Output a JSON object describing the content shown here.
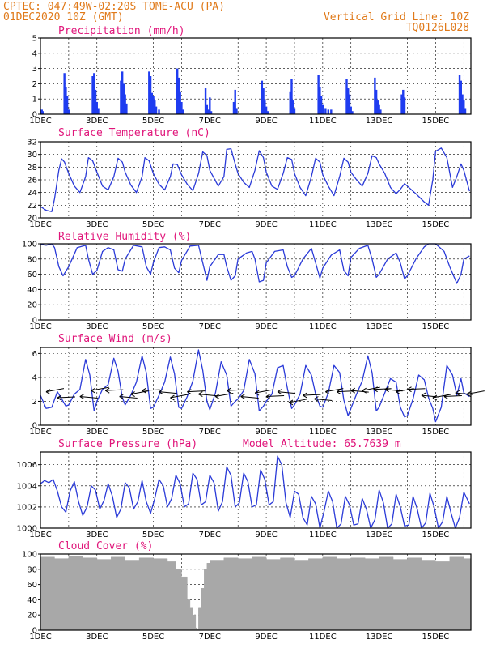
{
  "header": {
    "line1_left": "CPTEC:   047:49W-02:20S   TOME-ACU (PA)",
    "line2_left": "01DEC2020 10Z (GMT)",
    "line2_right": "Vertical Grid Line: 10Z",
    "line3_right": "TQ0126L028",
    "model_altitude": "Model Altitude: 65.7639 m"
  },
  "colors": {
    "header": "#e07a1a",
    "title": "#e0157a",
    "series": "#2a3ad8",
    "bars": "#1f3cf0",
    "cloud": "#a8a8a8"
  },
  "x_axis": {
    "tick_labels": [
      "1DEC",
      "3DEC",
      "5DEC",
      "7DEC",
      "9DEC",
      "11DEC",
      "13DEC",
      "15DEC"
    ],
    "tick_days": [
      1,
      3,
      5,
      7,
      9,
      11,
      13,
      15
    ],
    "year_label": "2020",
    "range": [
      1.0,
      16.25
    ]
  },
  "chart_data": [
    {
      "id": "precip",
      "type": "bar",
      "title": "Precipitation (mm/h)",
      "ylim": [
        0,
        5
      ],
      "yticks": [
        0,
        1,
        2,
        3,
        4,
        5
      ],
      "x": [
        1.05,
        1.1,
        1.85,
        1.9,
        1.95,
        2.0,
        2.85,
        2.9,
        2.95,
        3.0,
        3.05,
        3.85,
        3.9,
        3.95,
        4.0,
        4.05,
        4.85,
        4.9,
        4.95,
        5.0,
        5.05,
        5.1,
        5.2,
        5.85,
        5.9,
        5.95,
        6.0,
        6.05,
        6.85,
        6.9,
        6.95,
        7.0,
        7.05,
        7.85,
        7.9,
        7.95,
        8.85,
        8.9,
        8.95,
        9.0,
        9.05,
        9.85,
        9.9,
        9.95,
        10.0,
        10.85,
        10.9,
        10.95,
        11.0,
        11.1,
        11.2,
        11.3,
        11.85,
        11.9,
        11.95,
        12.0,
        12.05,
        12.85,
        12.9,
        12.95,
        13.0,
        13.05,
        13.8,
        13.85,
        13.9,
        15.85,
        15.9,
        15.95,
        16.0,
        16.05
      ],
      "values": [
        0.3,
        0.2,
        2.7,
        1.8,
        1.2,
        0.3,
        2.5,
        2.7,
        1.6,
        0.8,
        0.4,
        2.2,
        2.8,
        2.0,
        1.3,
        0.7,
        2.8,
        2.5,
        1.4,
        1.2,
        0.9,
        0.5,
        0.3,
        3.0,
        2.4,
        1.5,
        0.8,
        0.3,
        1.7,
        0.6,
        0.3,
        1.1,
        0.2,
        0.8,
        1.6,
        0.4,
        2.2,
        1.7,
        0.9,
        0.5,
        0.2,
        1.5,
        2.3,
        0.9,
        0.4,
        2.6,
        1.8,
        1.2,
        0.6,
        0.4,
        0.3,
        0.3,
        2.3,
        1.7,
        1.3,
        0.5,
        0.2,
        2.4,
        1.6,
        0.9,
        0.6,
        0.3,
        1.3,
        1.6,
        1.1,
        2.6,
        2.2,
        1.3,
        0.9,
        0.4
      ]
    },
    {
      "id": "temp",
      "type": "line",
      "title": "Surface Temperature (nC)",
      "ylim": [
        20,
        32
      ],
      "yticks": [
        20,
        22,
        24,
        26,
        28,
        30,
        32
      ],
      "x": [
        1.0,
        1.2,
        1.4,
        1.5,
        1.65,
        1.75,
        1.85,
        2.0,
        2.2,
        2.4,
        2.6,
        2.7,
        2.85,
        3.0,
        3.2,
        3.4,
        3.6,
        3.75,
        3.9,
        4.0,
        4.2,
        4.4,
        4.6,
        4.7,
        4.85,
        5.0,
        5.2,
        5.4,
        5.6,
        5.7,
        5.85,
        6.0,
        6.2,
        6.4,
        6.6,
        6.75,
        6.9,
        7.0,
        7.3,
        7.5,
        7.6,
        7.75,
        7.9,
        8.0,
        8.2,
        8.4,
        8.6,
        8.75,
        8.9,
        9.0,
        9.2,
        9.4,
        9.6,
        9.75,
        9.9,
        10.0,
        10.2,
        10.4,
        10.6,
        10.75,
        10.9,
        11.0,
        11.2,
        11.4,
        11.6,
        11.75,
        11.9,
        12.0,
        12.2,
        12.4,
        12.6,
        12.75,
        12.9,
        13.0,
        13.2,
        13.4,
        13.6,
        13.75,
        13.9,
        14.0,
        14.3,
        14.6,
        14.75,
        14.9,
        15.0,
        15.2,
        15.4,
        15.6,
        15.75,
        15.9,
        16.0,
        16.2
      ],
      "values": [
        21.8,
        21.2,
        21.0,
        23.0,
        27.5,
        29.3,
        28.8,
        27.0,
        25.0,
        24.0,
        26.5,
        29.5,
        29.0,
        27.2,
        25.0,
        24.4,
        26.5,
        29.4,
        28.8,
        27.2,
        25.2,
        24.0,
        26.5,
        29.5,
        29.0,
        27.0,
        25.3,
        24.4,
        26.5,
        28.5,
        28.4,
        26.8,
        25.3,
        24.3,
        27.0,
        30.4,
        29.8,
        27.5,
        25.0,
        26.5,
        30.8,
        30.9,
        28.5,
        27.0,
        25.6,
        24.8,
        27.5,
        30.6,
        29.5,
        27.2,
        25.0,
        24.5,
        27.0,
        29.5,
        29.2,
        27.0,
        24.8,
        23.5,
        26.5,
        29.4,
        28.8,
        26.8,
        25.0,
        23.5,
        26.5,
        29.4,
        28.8,
        27.2,
        26.0,
        25.0,
        27.0,
        29.8,
        29.5,
        28.5,
        27.0,
        24.8,
        23.8,
        24.5,
        25.4,
        25.0,
        23.8,
        22.5,
        22.0,
        26.0,
        30.5,
        31.0,
        29.5,
        24.8,
        26.5,
        28.5,
        27.5,
        24.2
      ]
    },
    {
      "id": "humidity",
      "type": "line",
      "title": "Relative Humidity (%)",
      "ylim": [
        0,
        100
      ],
      "yticks": [
        0,
        20,
        40,
        60,
        80,
        100
      ],
      "x": [
        1.0,
        1.2,
        1.4,
        1.5,
        1.65,
        1.8,
        2.0,
        2.3,
        2.6,
        2.7,
        2.85,
        3.0,
        3.2,
        3.4,
        3.6,
        3.75,
        3.9,
        4.0,
        4.3,
        4.6,
        4.75,
        4.9,
        5.0,
        5.2,
        5.4,
        5.6,
        5.75,
        5.9,
        6.0,
        6.3,
        6.6,
        6.75,
        6.9,
        7.0,
        7.3,
        7.5,
        7.6,
        7.75,
        7.9,
        8.0,
        8.3,
        8.5,
        8.6,
        8.75,
        8.9,
        9.0,
        9.3,
        9.6,
        9.75,
        9.9,
        10.0,
        10.3,
        10.6,
        10.75,
        10.9,
        11.0,
        11.3,
        11.6,
        11.75,
        11.9,
        12.0,
        12.3,
        12.6,
        12.75,
        12.9,
        13.0,
        13.3,
        13.6,
        13.75,
        13.9,
        14.0,
        14.3,
        14.6,
        14.75,
        14.9,
        15.0,
        15.3,
        15.5,
        15.75,
        15.9,
        16.0,
        16.2
      ],
      "values": [
        100,
        98,
        100,
        95,
        70,
        58,
        70,
        95,
        98,
        80,
        60,
        65,
        90,
        95,
        92,
        66,
        64,
        80,
        98,
        96,
        70,
        60,
        75,
        95,
        96,
        92,
        68,
        62,
        78,
        97,
        98,
        75,
        52,
        70,
        86,
        86,
        70,
        52,
        58,
        80,
        88,
        90,
        80,
        50,
        52,
        75,
        90,
        92,
        70,
        56,
        58,
        80,
        94,
        75,
        55,
        68,
        85,
        92,
        65,
        58,
        82,
        94,
        98,
        80,
        56,
        60,
        80,
        88,
        75,
        54,
        58,
        80,
        96,
        100,
        100,
        100,
        90,
        70,
        48,
        60,
        80,
        84
      ]
    },
    {
      "id": "wind",
      "type": "line",
      "title": "Surface Wind (m/s)",
      "ylim": [
        0,
        6.5
      ],
      "yticks": [
        0,
        2,
        4,
        6
      ],
      "x": [
        1.0,
        1.2,
        1.4,
        1.6,
        1.75,
        1.9,
        2.0,
        2.2,
        2.4,
        2.6,
        2.75,
        2.9,
        3.0,
        3.2,
        3.4,
        3.6,
        3.75,
        3.9,
        4.0,
        4.2,
        4.4,
        4.6,
        4.75,
        4.9,
        5.0,
        5.2,
        5.4,
        5.6,
        5.75,
        5.9,
        6.0,
        6.2,
        6.4,
        6.6,
        6.75,
        6.9,
        7.0,
        7.2,
        7.4,
        7.6,
        7.75,
        7.9,
        8.0,
        8.2,
        8.4,
        8.6,
        8.75,
        8.9,
        9.0,
        9.2,
        9.4,
        9.6,
        9.75,
        9.9,
        10.0,
        10.2,
        10.4,
        10.6,
        10.75,
        10.9,
        11.0,
        11.2,
        11.4,
        11.6,
        11.75,
        11.9,
        12.0,
        12.2,
        12.4,
        12.6,
        12.75,
        12.9,
        13.0,
        13.2,
        13.4,
        13.6,
        13.75,
        13.9,
        14.0,
        14.2,
        14.4,
        14.6,
        14.75,
        14.9,
        15.0,
        15.2,
        15.4,
        15.6,
        15.75,
        15.9,
        16.0,
        16.2
      ],
      "values": [
        2.5,
        1.4,
        1.5,
        2.8,
        2.2,
        1.6,
        1.7,
        2.6,
        3.0,
        5.5,
        4.2,
        1.2,
        2.0,
        3.0,
        3.4,
        5.6,
        4.5,
        2.3,
        1.7,
        2.5,
        3.6,
        5.8,
        4.4,
        1.4,
        1.5,
        2.5,
        3.6,
        5.7,
        4.3,
        1.5,
        1.4,
        2.4,
        3.7,
        6.3,
        4.6,
        2.0,
        1.3,
        2.7,
        5.3,
        4.2,
        1.6,
        2.0,
        2.2,
        2.9,
        5.5,
        4.3,
        1.2,
        1.6,
        2.0,
        2.6,
        4.8,
        5.0,
        3.1,
        1.4,
        1.7,
        2.6,
        5.0,
        4.2,
        2.6,
        1.6,
        1.5,
        2.7,
        5.0,
        4.4,
        2.1,
        0.8,
        1.4,
        2.6,
        3.7,
        5.8,
        4.4,
        1.2,
        1.5,
        2.7,
        3.9,
        3.6,
        1.5,
        0.7,
        0.8,
        2.2,
        4.2,
        3.8,
        2.3,
        1.4,
        0.3,
        1.5,
        5.0,
        4.2,
        2.5,
        3.9,
        2.7,
        2.4
      ]
    },
    {
      "id": "pressure",
      "type": "line",
      "title": "Surface Pressure (hPa)",
      "ylim": [
        1000,
        1007.2
      ],
      "yticks": [
        1002,
        1004,
        1006
      ],
      "ytick_labels": [
        "1002",
        "1004",
        "1006"
      ],
      "ybottom_label": "1000",
      "x": [
        1.0,
        1.15,
        1.3,
        1.45,
        1.6,
        1.75,
        1.9,
        2.05,
        2.2,
        2.35,
        2.5,
        2.65,
        2.8,
        2.95,
        3.1,
        3.25,
        3.4,
        3.55,
        3.7,
        3.85,
        4.0,
        4.15,
        4.3,
        4.45,
        4.6,
        4.75,
        4.9,
        5.05,
        5.2,
        5.35,
        5.5,
        5.65,
        5.8,
        5.95,
        6.1,
        6.25,
        6.4,
        6.55,
        6.7,
        6.85,
        7.0,
        7.15,
        7.3,
        7.45,
        7.6,
        7.75,
        7.9,
        8.05,
        8.2,
        8.35,
        8.5,
        8.65,
        8.8,
        8.95,
        9.1,
        9.25,
        9.4,
        9.55,
        9.7,
        9.85,
        10.0,
        10.15,
        10.3,
        10.45,
        10.6,
        10.75,
        10.9,
        11.05,
        11.2,
        11.35,
        11.5,
        11.65,
        11.8,
        11.95,
        12.1,
        12.25,
        12.4,
        12.55,
        12.7,
        12.85,
        13.0,
        13.15,
        13.3,
        13.45,
        13.6,
        13.75,
        13.9,
        14.05,
        14.2,
        14.35,
        14.5,
        14.65,
        14.8,
        14.95,
        15.1,
        15.25,
        15.4,
        15.55,
        15.7,
        15.85,
        16.0,
        16.2
      ],
      "values": [
        1004.2,
        1004.5,
        1004.3,
        1004.6,
        1003.5,
        1002.0,
        1001.5,
        1003.5,
        1004.4,
        1002.5,
        1001.2,
        1002.0,
        1004.0,
        1003.6,
        1001.8,
        1002.6,
        1004.2,
        1003.0,
        1001.0,
        1001.8,
        1004.3,
        1003.8,
        1001.8,
        1002.5,
        1004.5,
        1002.5,
        1001.4,
        1002.8,
        1004.6,
        1004.0,
        1002.0,
        1002.8,
        1005.0,
        1004.2,
        1002.0,
        1002.3,
        1005.2,
        1004.6,
        1002.2,
        1002.5,
        1005.0,
        1004.3,
        1001.6,
        1002.5,
        1005.8,
        1005.0,
        1002.0,
        1002.4,
        1005.2,
        1004.4,
        1002.0,
        1002.2,
        1005.5,
        1004.6,
        1002.2,
        1002.5,
        1006.8,
        1006.0,
        1002.4,
        1001.0,
        1003.5,
        1003.2,
        1001.0,
        1000.3,
        1003.0,
        1002.3,
        1000.0,
        1001.6,
        1003.5,
        1002.5,
        1000.0,
        1000.4,
        1003.0,
        1002.2,
        1000.3,
        1000.4,
        1002.8,
        1001.8,
        1000.0,
        1000.8,
        1003.6,
        1002.4,
        1000.0,
        1000.4,
        1003.2,
        1002.0,
        1000.2,
        1000.3,
        1003.0,
        1001.8,
        1000.0,
        1000.5,
        1003.3,
        1002.0,
        1000.0,
        1000.6,
        1003.0,
        1001.4,
        1000.0,
        1001.0,
        1003.4,
        1002.3
      ]
    },
    {
      "id": "cloud",
      "type": "bar",
      "title": "Cloud Cover (%)",
      "ylim": [
        0,
        100
      ],
      "yticks": [
        0,
        20,
        40,
        60,
        80,
        100
      ],
      "x": [
        1.0,
        1.5,
        2.0,
        2.5,
        3.0,
        3.5,
        4.0,
        4.5,
        5.0,
        5.5,
        5.8,
        6.0,
        6.2,
        6.3,
        6.4,
        6.5,
        6.55,
        6.6,
        6.7,
        6.8,
        6.9,
        7.0,
        7.5,
        8.0,
        8.5,
        9.0,
        9.5,
        10.0,
        10.5,
        11.0,
        11.5,
        12.0,
        12.5,
        13.0,
        13.5,
        14.0,
        14.5,
        15.0,
        15.5,
        16.0,
        16.25
      ],
      "values": [
        96,
        94,
        97,
        95,
        93,
        96,
        92,
        95,
        94,
        90,
        80,
        70,
        40,
        30,
        20,
        3,
        2,
        30,
        55,
        80,
        88,
        92,
        95,
        94,
        96,
        93,
        95,
        92,
        94,
        96,
        94,
        95,
        94,
        96,
        93,
        95,
        92,
        90,
        96,
        94,
        95
      ]
    }
  ]
}
